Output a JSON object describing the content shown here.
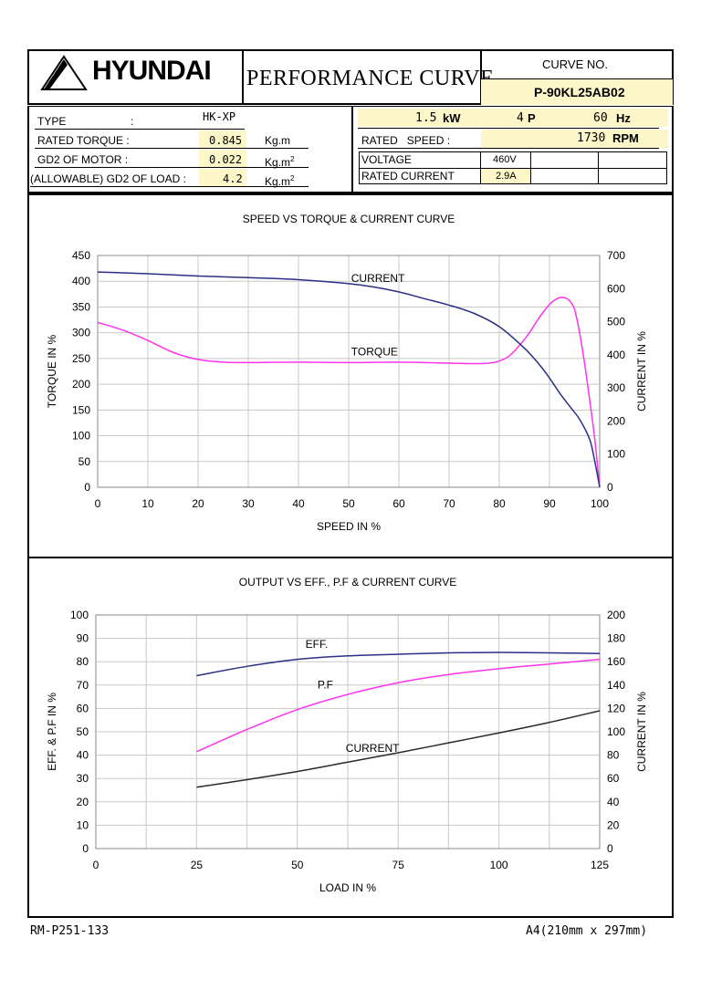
{
  "header": {
    "brand": "HYUNDAI",
    "title": "PERFORMANCE CURVE",
    "curve_no_label": "CURVE NO.",
    "curve_no": "P-90KL25AB02"
  },
  "specs": {
    "type_label": "TYPE",
    "type_colon": ":",
    "type_value": "HK-XP",
    "rated_torque_label": "RATED TORQUE :",
    "rated_torque_value": "0.845",
    "rated_torque_unit": "Kg.m",
    "gd2_motor_label": "GD2 OF MOTOR :",
    "gd2_motor_value": "0.022",
    "gd2_motor_unit": "Kg.m",
    "gd2_load_label": "(ALLOWABLE) GD2 OF LOAD :",
    "gd2_load_value": "4.2",
    "gd2_load_unit": "Kg.m",
    "unit_sup": "2",
    "power_value": "1.5",
    "power_unit": "kW",
    "poles_value": "4",
    "poles_unit": "P",
    "freq_value": "60",
    "freq_unit": "Hz",
    "rated_speed_label": "RATED   SPEED :",
    "rated_speed_value": "1730",
    "rated_speed_unit": "RPM",
    "voltage_label": "VOLTAGE",
    "voltage_value": "460V",
    "rated_current_label": "RATED CURRENT",
    "rated_current_value": "2.9A"
  },
  "footer": {
    "left": "RM-P251-133",
    "right": "A4(210mm x 297mm)"
  },
  "colors": {
    "current": "#2b2f86",
    "torque": "#ff33ee",
    "eff": "#2b2f86",
    "pf": "#ff33ee",
    "current_load": "#2a2a2a",
    "highlight": "#fdf6c9",
    "grid": "#c8c8c8"
  },
  "chart_data": [
    {
      "type": "line",
      "title": "SPEED VS TORQUE & CURRENT CURVE",
      "xlabel": "SPEED IN %",
      "ylabel": "TORQUE IN %",
      "y2label": "CURRENT IN %",
      "xlim": [
        0,
        100
      ],
      "ylim": [
        0,
        450
      ],
      "y2lim": [
        0,
        700
      ],
      "xticks": [
        0,
        10,
        20,
        30,
        40,
        50,
        60,
        70,
        80,
        90,
        100
      ],
      "yticks": [
        0,
        50,
        100,
        150,
        200,
        250,
        300,
        350,
        400,
        450
      ],
      "y2ticks": [
        0,
        100,
        200,
        300,
        400,
        500,
        600,
        700
      ],
      "grid": true,
      "series": [
        {
          "name": "TORQUE",
          "axis": "left",
          "x": [
            0,
            5,
            10,
            15,
            20,
            25,
            30,
            40,
            50,
            60,
            70,
            75,
            78,
            80,
            82,
            84,
            86,
            88,
            90,
            91,
            92,
            93,
            94,
            95,
            96,
            97,
            98,
            99,
            100
          ],
          "y": [
            320,
            305,
            285,
            262,
            248,
            243,
            242,
            243,
            242,
            243,
            241,
            240,
            241,
            245,
            255,
            275,
            300,
            330,
            355,
            363,
            368,
            368,
            362,
            345,
            300,
            240,
            170,
            95,
            0
          ]
        },
        {
          "name": "CURRENT",
          "axis": "right",
          "x": [
            0,
            10,
            20,
            30,
            40,
            50,
            55,
            60,
            65,
            70,
            75,
            80,
            85,
            88,
            90,
            92,
            94,
            96,
            98,
            99,
            100
          ],
          "y": [
            650,
            645,
            638,
            633,
            627,
            615,
            605,
            590,
            570,
            550,
            525,
            485,
            420,
            370,
            330,
            285,
            245,
            205,
            145,
            80,
            0
          ]
        }
      ]
    },
    {
      "type": "line",
      "title": "OUTPUT VS EFF., P.F & CURRENT CURVE",
      "xlabel": "LOAD IN %",
      "ylabel": "EFF. & P.F IN %",
      "y2label": "CURRENT IN %",
      "xlim": [
        0,
        125
      ],
      "ylim": [
        0,
        100
      ],
      "y2lim": [
        0,
        200
      ],
      "xticks": [
        0,
        25,
        50,
        75,
        100,
        125
      ],
      "yticks": [
        0,
        10,
        20,
        30,
        40,
        50,
        60,
        70,
        80,
        90,
        100
      ],
      "y2ticks": [
        0,
        20,
        40,
        60,
        80,
        100,
        120,
        140,
        160,
        180,
        200
      ],
      "grid": true,
      "series": [
        {
          "name": "EFF.",
          "axis": "left",
          "x": [
            25,
            37.5,
            50,
            62.5,
            75,
            87.5,
            100,
            112.5,
            125
          ],
          "y": [
            74,
            78,
            81,
            82.5,
            83.2,
            83.8,
            84,
            83.8,
            83.5
          ]
        },
        {
          "name": "P.F",
          "axis": "left",
          "x": [
            25,
            37.5,
            50,
            62.5,
            75,
            87.5,
            100,
            112.5,
            125
          ],
          "y": [
            41.5,
            51,
            59.5,
            66,
            71,
            74.5,
            77,
            79,
            81
          ]
        },
        {
          "name": "CURRENT",
          "axis": "right",
          "x": [
            25,
            37.5,
            50,
            62.5,
            75,
            87.5,
            100,
            112.5,
            125
          ],
          "y": [
            52.5,
            59,
            66,
            74,
            82,
            90.5,
            99,
            108,
            118
          ]
        }
      ]
    }
  ]
}
